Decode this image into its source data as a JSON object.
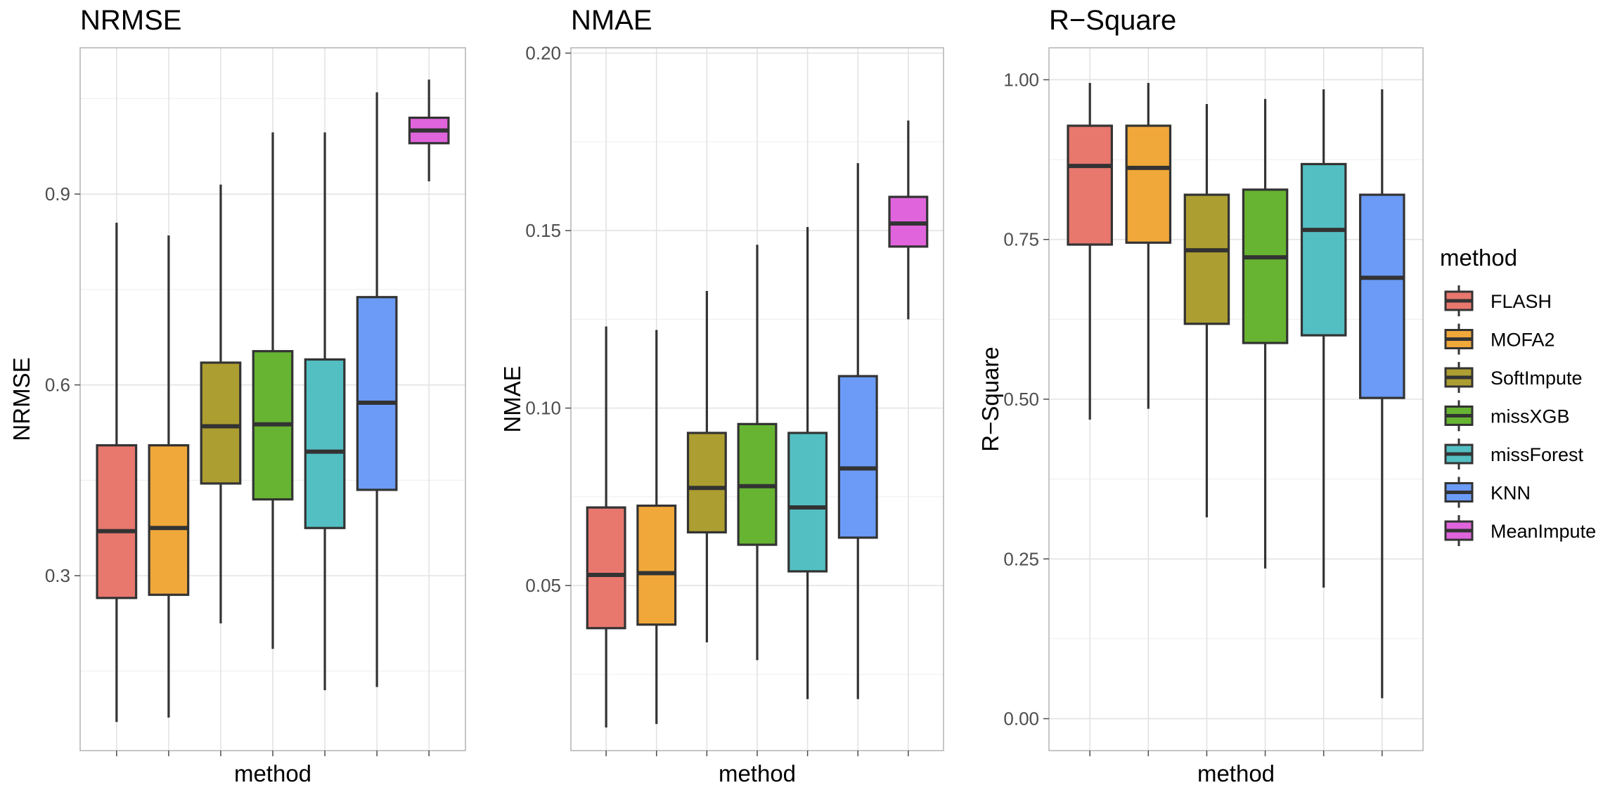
{
  "legend": {
    "title": "method",
    "items": [
      {
        "label": "FLASH",
        "color": "#E8776E"
      },
      {
        "label": "MOFA2",
        "color": "#F1A83A"
      },
      {
        "label": "SoftImpute",
        "color": "#AD9E31"
      },
      {
        "label": "missXGB",
        "color": "#66B432"
      },
      {
        "label": "missForest",
        "color": "#53BFC3"
      },
      {
        "label": "KNN",
        "color": "#6B9BF7"
      },
      {
        "label": "MeanImpute",
        "color": "#E064DC"
      }
    ]
  },
  "chart_data": [
    {
      "type": "box",
      "title": "NRMSE",
      "xlabel": "method",
      "ylabel": "NRMSE",
      "ylim": [
        0.025,
        1.13
      ],
      "yticks": [
        0.3,
        0.6,
        0.9
      ],
      "ytick_labels": [
        "0.3",
        "0.6",
        "0.9"
      ],
      "minor_yticks": [
        0.15,
        0.45,
        0.75,
        1.05
      ],
      "grid": true,
      "boxes": [
        {
          "method": "FLASH",
          "min": 0.07,
          "q1": 0.265,
          "median": 0.37,
          "q3": 0.505,
          "max": 0.855
        },
        {
          "method": "MOFA2",
          "min": 0.077,
          "q1": 0.27,
          "median": 0.375,
          "q3": 0.505,
          "max": 0.835
        },
        {
          "method": "SoftImpute",
          "min": 0.225,
          "q1": 0.445,
          "median": 0.535,
          "q3": 0.635,
          "max": 0.915
        },
        {
          "method": "missXGB",
          "min": 0.185,
          "q1": 0.42,
          "median": 0.538,
          "q3": 0.653,
          "max": 0.997
        },
        {
          "method": "missForest",
          "min": 0.12,
          "q1": 0.375,
          "median": 0.495,
          "q3": 0.64,
          "max": 0.997
        },
        {
          "method": "KNN",
          "min": 0.125,
          "q1": 0.435,
          "median": 0.572,
          "q3": 0.738,
          "max": 1.06
        },
        {
          "method": "MeanImpute",
          "min": 0.92,
          "q1": 0.98,
          "median": 1.0,
          "q3": 1.02,
          "max": 1.08
        }
      ]
    },
    {
      "type": "box",
      "title": "NMAE",
      "xlabel": "method",
      "ylabel": "NMAE",
      "ylim": [
        0.0035,
        0.2015
      ],
      "yticks": [
        0.05,
        0.1,
        0.15,
        0.2
      ],
      "ytick_labels": [
        "0.05",
        "0.10",
        "0.15",
        "0.20"
      ],
      "minor_yticks": [
        0.025,
        0.075,
        0.125,
        0.175
      ],
      "grid": true,
      "boxes": [
        {
          "method": "FLASH",
          "min": 0.01,
          "q1": 0.038,
          "median": 0.053,
          "q3": 0.072,
          "max": 0.123
        },
        {
          "method": "MOFA2",
          "min": 0.011,
          "q1": 0.039,
          "median": 0.0535,
          "q3": 0.0725,
          "max": 0.122
        },
        {
          "method": "SoftImpute",
          "min": 0.034,
          "q1": 0.065,
          "median": 0.0775,
          "q3": 0.093,
          "max": 0.133
        },
        {
          "method": "missXGB",
          "min": 0.029,
          "q1": 0.0615,
          "median": 0.078,
          "q3": 0.0955,
          "max": 0.146
        },
        {
          "method": "missForest",
          "min": 0.018,
          "q1": 0.054,
          "median": 0.072,
          "q3": 0.093,
          "max": 0.151
        },
        {
          "method": "KNN",
          "min": 0.018,
          "q1": 0.0635,
          "median": 0.083,
          "q3": 0.109,
          "max": 0.169
        },
        {
          "method": "MeanImpute",
          "min": 0.125,
          "q1": 0.1455,
          "median": 0.152,
          "q3": 0.1595,
          "max": 0.181
        }
      ]
    },
    {
      "type": "box",
      "title": "R−Square",
      "xlabel": "method",
      "ylabel": "R−Square",
      "ylim": [
        -0.05,
        1.05
      ],
      "yticks": [
        0.0,
        0.25,
        0.5,
        0.75,
        1.0
      ],
      "ytick_labels": [
        "0.00",
        "0.25",
        "0.50",
        "0.75",
        "1.00"
      ],
      "minor_yticks": [
        0.125,
        0.375,
        0.625,
        0.875
      ],
      "grid": true,
      "boxes": [
        {
          "method": "FLASH",
          "min": 0.468,
          "q1": 0.742,
          "median": 0.865,
          "q3": 0.928,
          "max": 0.995
        },
        {
          "method": "MOFA2",
          "min": 0.485,
          "q1": 0.745,
          "median": 0.862,
          "q3": 0.928,
          "max": 0.995
        },
        {
          "method": "SoftImpute",
          "min": 0.315,
          "q1": 0.618,
          "median": 0.733,
          "q3": 0.82,
          "max": 0.962
        },
        {
          "method": "missXGB",
          "min": 0.235,
          "q1": 0.588,
          "median": 0.722,
          "q3": 0.828,
          "max": 0.97
        },
        {
          "method": "missForest",
          "min": 0.205,
          "q1": 0.6,
          "median": 0.765,
          "q3": 0.868,
          "max": 0.985
        },
        {
          "method": "KNN",
          "min": 0.032,
          "q1": 0.502,
          "median": 0.69,
          "q3": 0.82,
          "max": 0.985
        }
      ]
    }
  ]
}
